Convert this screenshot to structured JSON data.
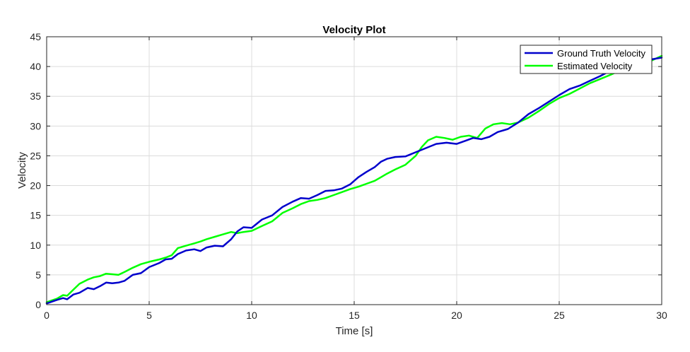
{
  "chart_data": {
    "type": "line",
    "title": "Velocity Plot",
    "xlabel": "Time [s]",
    "ylabel": "Velocity",
    "xlim": [
      0,
      30
    ],
    "ylim": [
      0,
      45
    ],
    "xticks": [
      0,
      5,
      10,
      15,
      20,
      25,
      30
    ],
    "yticks": [
      0,
      5,
      10,
      15,
      20,
      25,
      30,
      35,
      40,
      45
    ],
    "grid": true,
    "legend_position": "top-right",
    "series": [
      {
        "name": "Ground Truth Velocity",
        "color": "#0000cc",
        "x": [
          0,
          0.5,
          0.8,
          1.0,
          1.3,
          1.6,
          2.0,
          2.3,
          2.6,
          2.9,
          3.2,
          3.5,
          3.8,
          4.2,
          4.6,
          5.0,
          5.5,
          5.8,
          6.1,
          6.4,
          6.8,
          7.2,
          7.5,
          7.8,
          8.2,
          8.6,
          9.0,
          9.3,
          9.6,
          10.0,
          10.5,
          11.0,
          11.5,
          12.0,
          12.4,
          12.8,
          13.2,
          13.6,
          14.0,
          14.4,
          14.8,
          15.2,
          15.6,
          16.0,
          16.3,
          16.6,
          17.0,
          17.5,
          18.0,
          18.5,
          19.0,
          19.5,
          20.0,
          20.4,
          20.8,
          21.2,
          21.6,
          22.0,
          22.5,
          23.0,
          23.5,
          24.0,
          24.5,
          25.0,
          25.5,
          26.0,
          26.5,
          27.0,
          27.5,
          28.0,
          28.5,
          29.0,
          29.5,
          30.0
        ],
        "y": [
          0.2,
          0.8,
          1.1,
          0.9,
          1.7,
          2.0,
          2.8,
          2.6,
          3.1,
          3.7,
          3.6,
          3.7,
          4.0,
          5.0,
          5.3,
          6.3,
          7.0,
          7.6,
          7.7,
          8.5,
          9.1,
          9.3,
          9.0,
          9.6,
          9.9,
          9.8,
          11.0,
          12.3,
          13.0,
          12.9,
          14.3,
          15.0,
          16.4,
          17.3,
          17.9,
          17.8,
          18.4,
          19.1,
          19.2,
          19.5,
          20.2,
          21.4,
          22.3,
          23.1,
          24.0,
          24.5,
          24.8,
          24.9,
          25.6,
          26.3,
          27.0,
          27.2,
          27.0,
          27.5,
          28.0,
          27.8,
          28.2,
          29.0,
          29.5,
          30.6,
          32.0,
          33.0,
          34.1,
          35.2,
          36.2,
          36.8,
          37.6,
          38.4,
          39.3,
          40.0,
          40.6,
          41.0,
          41.2,
          41.5
        ]
      },
      {
        "name": "Estimated Velocity",
        "color": "#00ff00",
        "x": [
          0,
          0.5,
          0.8,
          1.0,
          1.3,
          1.6,
          2.0,
          2.3,
          2.6,
          2.9,
          3.2,
          3.5,
          3.8,
          4.2,
          4.6,
          5.0,
          5.5,
          5.8,
          6.1,
          6.4,
          6.8,
          7.2,
          7.5,
          7.8,
          8.2,
          8.6,
          9.0,
          9.3,
          9.6,
          10.0,
          10.5,
          11.0,
          11.5,
          12.0,
          12.4,
          12.8,
          13.2,
          13.6,
          14.0,
          14.4,
          14.8,
          15.2,
          15.6,
          16.0,
          16.3,
          16.6,
          17.0,
          17.5,
          18.0,
          18.3,
          18.6,
          19.0,
          19.4,
          19.8,
          20.2,
          20.6,
          21.0,
          21.4,
          21.8,
          22.2,
          22.6,
          23.0,
          23.5,
          24.0,
          24.5,
          25.0,
          25.5,
          26.0,
          26.5,
          27.0,
          27.5,
          28.0,
          28.5,
          29.0,
          29.5,
          30.0
        ],
        "y": [
          0.4,
          1.0,
          1.6,
          1.5,
          2.5,
          3.5,
          4.2,
          4.6,
          4.8,
          5.2,
          5.1,
          5.0,
          5.5,
          6.2,
          6.8,
          7.2,
          7.6,
          7.9,
          8.3,
          9.5,
          9.9,
          10.3,
          10.6,
          11.0,
          11.4,
          11.8,
          12.2,
          12.0,
          12.2,
          12.4,
          13.2,
          14.0,
          15.4,
          16.2,
          16.9,
          17.4,
          17.6,
          17.9,
          18.4,
          18.9,
          19.4,
          19.8,
          20.3,
          20.8,
          21.4,
          22.0,
          22.7,
          23.5,
          25.0,
          26.5,
          27.6,
          28.2,
          28.0,
          27.7,
          28.2,
          28.4,
          28.0,
          29.6,
          30.3,
          30.5,
          30.3,
          30.6,
          31.4,
          32.5,
          33.7,
          34.7,
          35.4,
          36.3,
          37.2,
          37.9,
          38.6,
          39.4,
          40.0,
          40.5,
          41.0,
          41.8
        ]
      }
    ]
  }
}
